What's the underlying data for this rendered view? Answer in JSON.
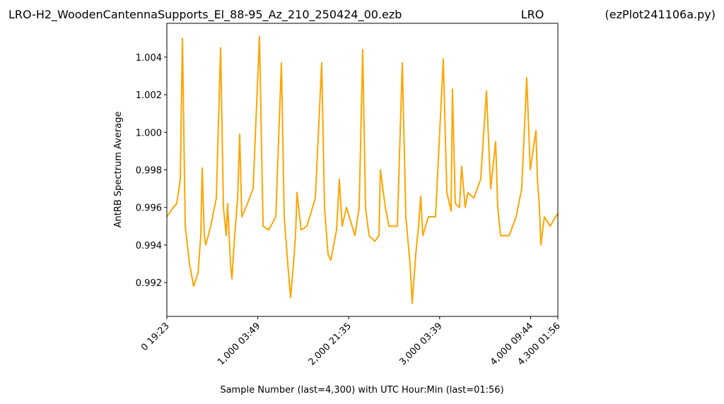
{
  "chart_data": {
    "type": "line",
    "title": "LRO-H2_WoodenCantennaSupports_El_88-95_Az_210_250424_00.ezb",
    "site": "LRO",
    "source": "(ezPlot241106a.py)",
    "x_label": "Sample Number (last=4,300) with UTC Hour:Min (last=01:56)",
    "y_label": "AntRB Spectrum Average",
    "xlim": [
      0,
      4300
    ],
    "ylim": [
      0.9902,
      1.0058
    ],
    "xticks": [
      {
        "value": 0,
        "label": "0  19:23"
      },
      {
        "value": 1000,
        "label": "1,000  03:49"
      },
      {
        "value": 2000,
        "label": "2,000  21:35"
      },
      {
        "value": 3000,
        "label": "3,000  03:39"
      },
      {
        "value": 4000,
        "label": "4,000  09:44"
      },
      {
        "value": 4300,
        "label": "4,300  01:56"
      }
    ],
    "yticks": [
      0.992,
      0.994,
      0.996,
      0.998,
      {
        "value": 1,
        "label": "1.000"
      },
      1.002,
      1.004
    ],
    "series": [
      {
        "color": "#ffa500",
        "x": [
          0,
          70,
          109,
          148,
          171,
          202,
          249,
          295,
          342,
          373,
          389,
          412,
          428,
          482,
          544,
          591,
          622,
          653,
          669,
          700,
          715,
          746,
          778,
          801,
          824,
          886,
          949,
          1019,
          1058,
          1120,
          1198,
          1260,
          1291,
          1330,
          1361,
          1384,
          1415,
          1431,
          1477,
          1540,
          1633,
          1703,
          1734,
          1773,
          1804,
          1866,
          1897,
          1928,
          1975,
          2006,
          2068,
          2115,
          2154,
          2185,
          2224,
          2286,
          2333,
          2348,
          2403,
          2442,
          2535,
          2589,
          2628,
          2675,
          2698,
          2737,
          2768,
          2792,
          2815,
          2877,
          2955,
          3040,
          3079,
          3126,
          3141,
          3172,
          3219,
          3242,
          3281,
          3312,
          3375,
          3452,
          3515,
          3561,
          3616,
          3639,
          3670,
          3764,
          3841,
          3903,
          3958,
          3997,
          4059,
          4075,
          4098,
          4113,
          4152,
          4215,
          4300
        ],
        "values": [
          0.9955,
          0.996,
          0.9962,
          0.9975,
          1.005,
          0.995,
          0.993,
          0.9918,
          0.9925,
          0.9945,
          0.9981,
          0.9945,
          0.994,
          0.995,
          0.9965,
          1.0045,
          0.996,
          0.9945,
          0.9962,
          0.993,
          0.9922,
          0.9945,
          0.9965,
          0.9999,
          0.9955,
          0.9962,
          0.997,
          1.0051,
          0.995,
          0.9948,
          0.9955,
          1.0037,
          0.9955,
          0.993,
          0.9912,
          0.9925,
          0.9945,
          0.9968,
          0.9948,
          0.995,
          0.9965,
          1.0037,
          0.996,
          0.9935,
          0.9932,
          0.9948,
          0.9975,
          0.995,
          0.996,
          0.9955,
          0.9945,
          0.996,
          1.0044,
          0.996,
          0.9945,
          0.9942,
          0.9945,
          0.998,
          0.996,
          0.995,
          0.995,
          1.0037,
          0.9955,
          0.993,
          0.9909,
          0.9935,
          0.995,
          0.9966,
          0.9945,
          0.9955,
          0.9955,
          1.0039,
          0.9968,
          0.9958,
          1.0023,
          0.9962,
          0.996,
          0.9982,
          0.996,
          0.9968,
          0.9965,
          0.9975,
          1.0022,
          0.997,
          0.9995,
          0.996,
          0.9945,
          0.9945,
          0.9955,
          0.997,
          1.0029,
          0.998,
          1.0001,
          0.9975,
          0.996,
          0.994,
          0.9955,
          0.995,
          0.9957
        ]
      }
    ]
  }
}
